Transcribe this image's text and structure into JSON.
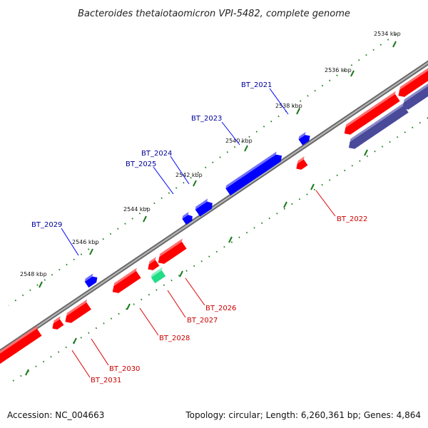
{
  "title": "Bacteroides thetaiotaomicron VPI-5482, complete genome",
  "footer": {
    "accession": "Accession: NC_004663",
    "topology": "Topology: circular; Length: 6,260,361 bp; Genes: 4,864"
  },
  "colors": {
    "forward_gene": "#0000ff",
    "reverse_gene": "#ff0000",
    "reverse_gene_alt": "#4a4a9a",
    "rna_gene": "#22dd88",
    "backbone": "#808080",
    "ticks": "#1a7a1a",
    "forward_label": "#000099",
    "reverse_label": "#cc0000"
  },
  "kbp_labels": [
    "2534 kbp",
    "2536 kbp",
    "2538 kbp",
    "2540 kbp",
    "2542 kbp",
    "2544 kbp",
    "2546 kbp",
    "2548 kbp"
  ],
  "forward_genes": [
    {
      "id": "BT_2021",
      "label": "BT_2021"
    },
    {
      "id": "BT_2023",
      "label": "BT_2023"
    },
    {
      "id": "BT_2024",
      "label": "BT_2024"
    },
    {
      "id": "BT_2025",
      "label": "BT_2025"
    },
    {
      "id": "BT_2029",
      "label": "BT_2029"
    }
  ],
  "reverse_genes": [
    {
      "id": "BT_2022",
      "label": "BT_2022"
    },
    {
      "id": "BT_2026",
      "label": "BT_2026"
    },
    {
      "id": "BT_2027",
      "label": "BT_2027"
    },
    {
      "id": "BT_2028",
      "label": "BT_2028"
    },
    {
      "id": "BT_2030",
      "label": "BT_2030"
    },
    {
      "id": "BT_2031",
      "label": "BT_2031"
    }
  ]
}
